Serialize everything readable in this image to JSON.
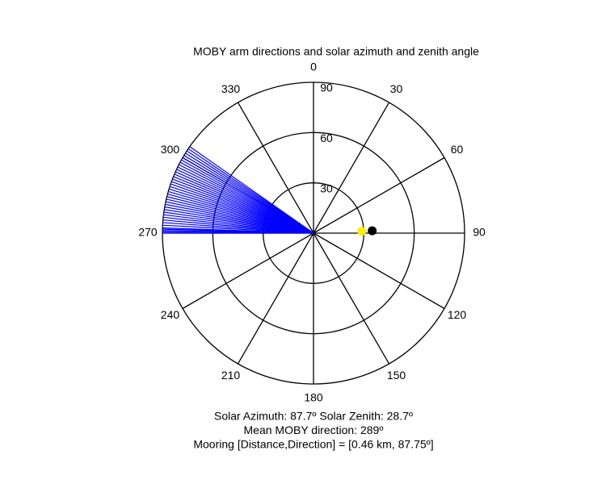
{
  "chart_data": {
    "type": "polar",
    "title": "MOBY arm directions and solar azimuth and zenith angle",
    "thetaticks": [
      0,
      30,
      60,
      90,
      120,
      150,
      180,
      210,
      240,
      270,
      300,
      330
    ],
    "rlim": [
      0,
      90
    ],
    "rticks": [
      30,
      60,
      90
    ],
    "lines": {
      "color": "#0000ff",
      "r": 90,
      "values": [
        270,
        270.5,
        271,
        271.5,
        272,
        273,
        274,
        275,
        276,
        277,
        278,
        279,
        280,
        281,
        282,
        283,
        284,
        285,
        286,
        287,
        288,
        289,
        290,
        291,
        292,
        293,
        294,
        295,
        296,
        297,
        298,
        299,
        300,
        301,
        302,
        303,
        304,
        305
      ]
    },
    "points": [
      {
        "color": "#000000",
        "theta": 87.75,
        "r": 35
      },
      {
        "color": "#ffee00",
        "theta": 87.7,
        "r": 28.7
      }
    ],
    "annotations": [
      "Solar Azimuth: 87.7º    Solar Zenith: 28.7º",
      "Mean MOBY direction: 289º",
      "Mooring [Distance,Direction] = [0.46 km, 87.75º]"
    ]
  }
}
